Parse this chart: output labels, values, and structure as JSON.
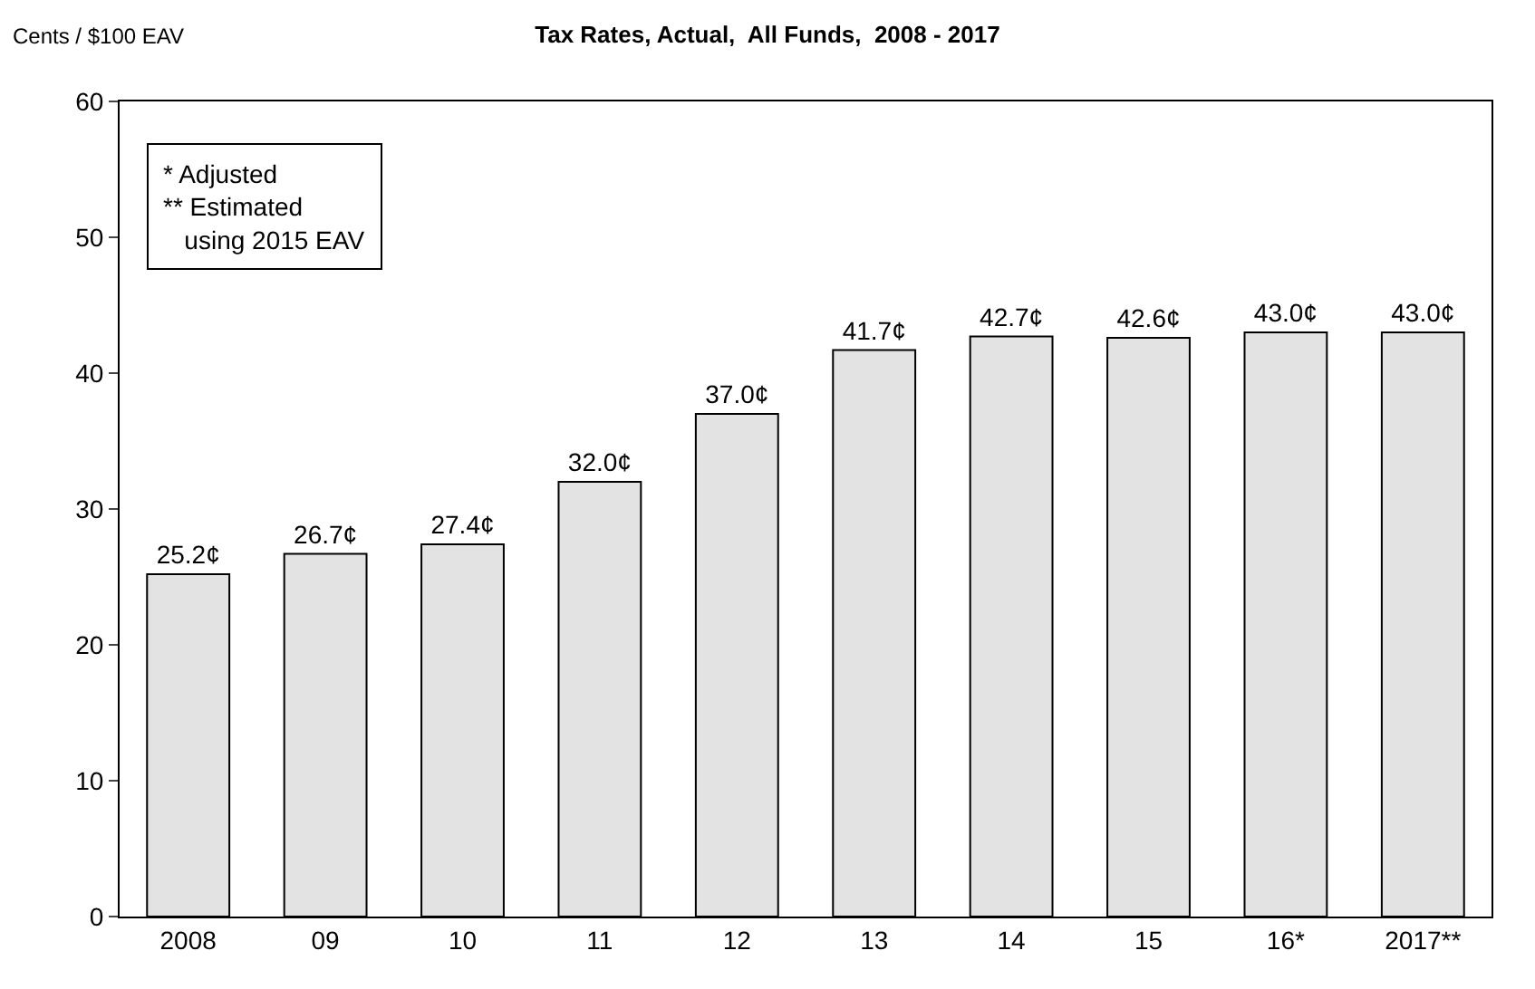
{
  "chart_data": {
    "type": "bar",
    "title": "Tax Rates, Actual,  All Funds,  2008 - 2017",
    "ylabel": "Cents / $100 EAV",
    "categories": [
      "2008",
      "09",
      "10",
      "11",
      "12",
      "13",
      "14",
      "15",
      "16*",
      "2017**"
    ],
    "values": [
      25.2,
      26.7,
      27.4,
      32.0,
      37.0,
      41.7,
      42.7,
      42.6,
      43.0,
      43.0
    ],
    "value_labels": [
      "25.2¢",
      "26.7¢",
      "27.4¢",
      "32.0¢",
      "37.0¢",
      "41.7¢",
      "42.7¢",
      "42.6¢",
      "43.0¢",
      "43.0¢"
    ],
    "color": "#e3e3e3",
    "ylim": [
      0,
      60
    ],
    "yticks": [
      0,
      10,
      20,
      30,
      40,
      50,
      60
    ],
    "annotations": [
      "* Adjusted\n** Estimated\n   using 2015 EAV"
    ]
  }
}
